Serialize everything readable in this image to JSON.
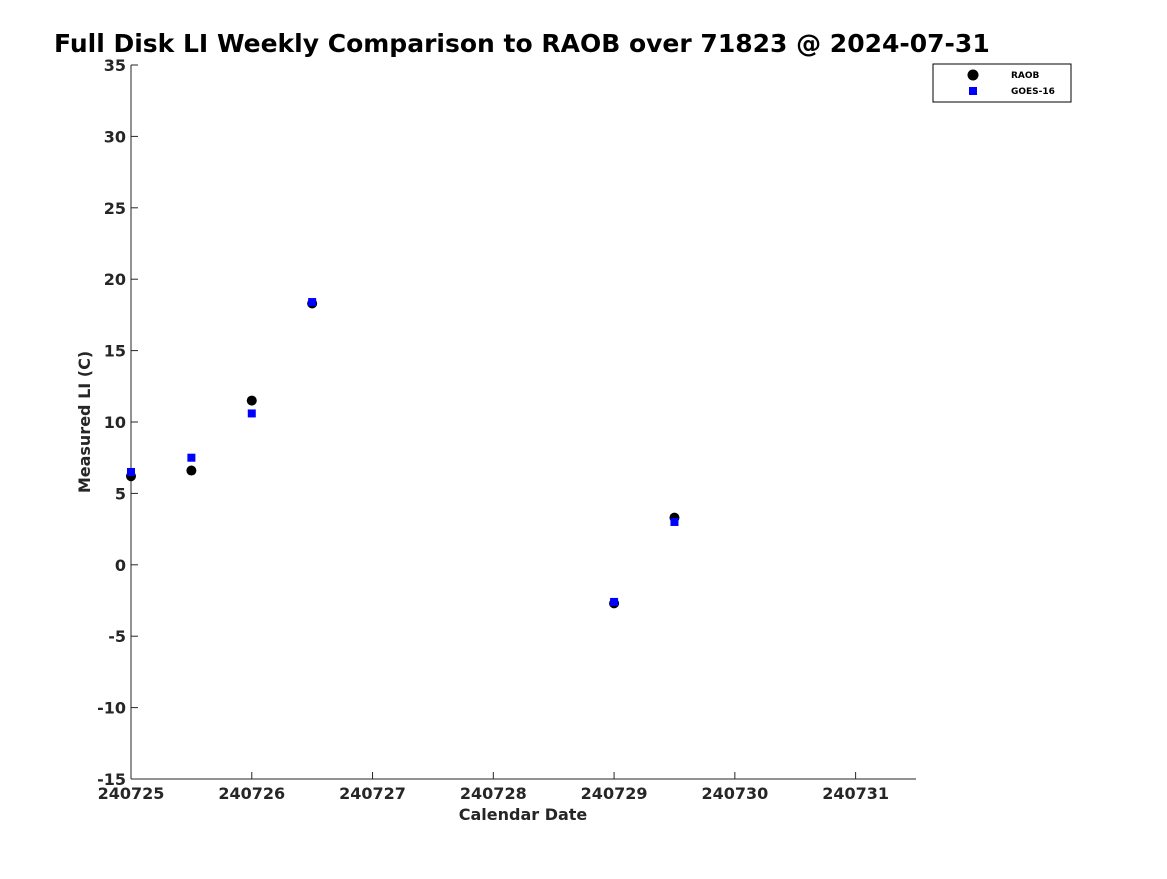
{
  "chart_data": {
    "type": "scatter",
    "title": "Full Disk LI Weekly Comparison to RAOB over 71823 @ 2024-07-31",
    "xlabel": "Calendar Date",
    "ylabel": "Measured LI (C)",
    "xlim": [
      240725,
      240731.5
    ],
    "ylim": [
      -15,
      35
    ],
    "xticks": [
      240725,
      240726,
      240727,
      240728,
      240729,
      240730,
      240731
    ],
    "xtick_labels": [
      "240725",
      "240726",
      "240727",
      "240728",
      "240729",
      "240730",
      "240731"
    ],
    "yticks": [
      -15,
      -10,
      -5,
      0,
      5,
      10,
      15,
      20,
      25,
      30,
      35
    ],
    "ytick_labels": [
      "-15",
      "-10",
      "-5",
      "0",
      "5",
      "10",
      "15",
      "20",
      "25",
      "30",
      "35"
    ],
    "grid": false,
    "legend_position": "top-right",
    "series": [
      {
        "name": "RAOB",
        "marker": "circle",
        "color": "#000000",
        "x": [
          240725,
          240725.5,
          240726,
          240726.5,
          240729,
          240729.5
        ],
        "y": [
          6.2,
          6.6,
          11.5,
          18.3,
          -2.7,
          3.3
        ]
      },
      {
        "name": "GOES-16",
        "marker": "square",
        "color": "#0000ff",
        "x": [
          240725,
          240725.5,
          240726,
          240726.5,
          240729,
          240729.5
        ],
        "y": [
          6.5,
          7.5,
          10.6,
          18.4,
          -2.6,
          3.0
        ]
      }
    ]
  }
}
